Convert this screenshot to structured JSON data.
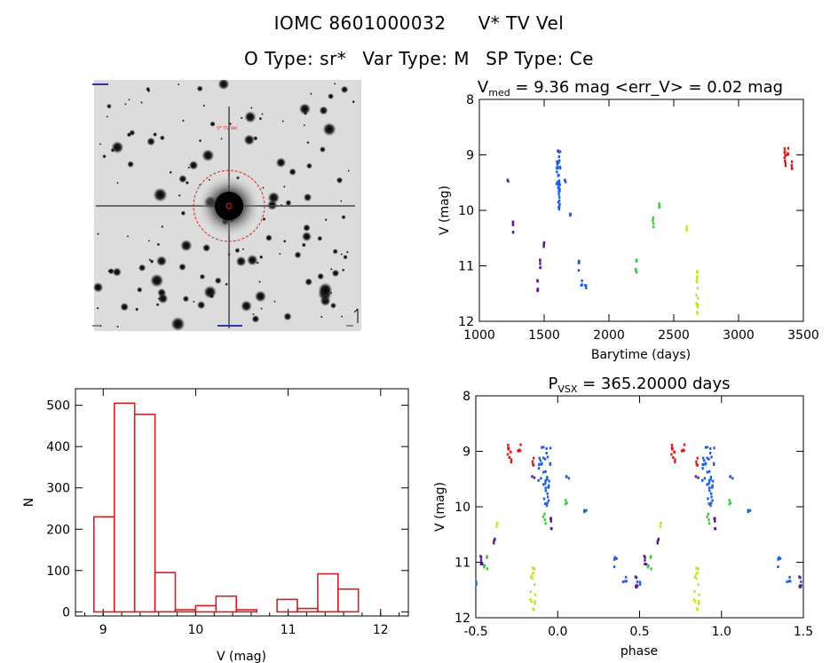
{
  "header": {
    "title_id": "IOMC 8601000032",
    "title_name": "V* TV Vel",
    "otype": "O Type: sr*",
    "vartype": "Var Type: M",
    "sptype": "SP Type: Ce"
  },
  "image_panel": {
    "annotation": "V* TV Vel"
  },
  "colors": {
    "hist": "#cc2222",
    "time_palette": [
      "#5a1e8c",
      "#1f5fe0",
      "#27c7e0",
      "#3ec83e",
      "#c8e030",
      "#e0a020",
      "#d02020"
    ]
  },
  "chart_data": [
    {
      "type": "scatter",
      "id": "lightcurve",
      "title": {
        "v": "V",
        "sub": "med",
        "rest": " = 9.36 mag <err_V> = 0.02 mag"
      },
      "xlabel": "Barytime (days)",
      "ylabel": "V (mag)",
      "xlim": [
        1000,
        3500
      ],
      "ylim": [
        12,
        8
      ],
      "xticks": [
        1000,
        1500,
        2000,
        2500,
        3000,
        3500
      ],
      "yticks": [
        8,
        9,
        10,
        11,
        12
      ],
      "clusters": [
        {
          "x": 1220,
          "y": 9.45,
          "n": 2,
          "dx": 4,
          "dy": 0.04
        },
        {
          "x": 1260,
          "y": 10.3,
          "n": 6,
          "dx": 3,
          "dy": 0.18
        },
        {
          "x": 1450,
          "y": 11.4,
          "n": 6,
          "dx": 3,
          "dy": 0.18
        },
        {
          "x": 1470,
          "y": 11.0,
          "n": 5,
          "dx": 3,
          "dy": 0.12
        },
        {
          "x": 1500,
          "y": 10.6,
          "n": 4,
          "dx": 3,
          "dy": 0.08
        },
        {
          "x": 1610,
          "y": 9.45,
          "n": 40,
          "dx": 14,
          "dy": 0.55
        },
        {
          "x": 1660,
          "y": 9.45,
          "n": 3,
          "dx": 6,
          "dy": 0.04
        },
        {
          "x": 1700,
          "y": 10.05,
          "n": 3,
          "dx": 4,
          "dy": 0.06
        },
        {
          "x": 1770,
          "y": 11.0,
          "n": 5,
          "dx": 4,
          "dy": 0.12
        },
        {
          "x": 1790,
          "y": 11.3,
          "n": 4,
          "dx": 4,
          "dy": 0.08
        },
        {
          "x": 1820,
          "y": 11.4,
          "n": 3,
          "dx": 4,
          "dy": 0.05
        },
        {
          "x": 2210,
          "y": 11.05,
          "n": 5,
          "dx": 5,
          "dy": 0.16
        },
        {
          "x": 2340,
          "y": 10.2,
          "n": 4,
          "dx": 4,
          "dy": 0.1
        },
        {
          "x": 2390,
          "y": 9.9,
          "n": 3,
          "dx": 3,
          "dy": 0.06
        },
        {
          "x": 2600,
          "y": 10.3,
          "n": 3,
          "dx": 3,
          "dy": 0.06
        },
        {
          "x": 2680,
          "y": 11.55,
          "n": 16,
          "dx": 6,
          "dy": 0.45
        },
        {
          "x": 3360,
          "y": 9.05,
          "n": 10,
          "dx": 6,
          "dy": 0.2
        },
        {
          "x": 3380,
          "y": 8.9,
          "n": 5,
          "dx": 5,
          "dy": 0.1
        },
        {
          "x": 3410,
          "y": 9.2,
          "n": 4,
          "dx": 3,
          "dy": 0.12
        }
      ]
    },
    {
      "type": "bar",
      "id": "histogram",
      "xlabel": "V (mag)",
      "ylabel": "N",
      "xlim": [
        8.7,
        12.3
      ],
      "ylim": [
        -10,
        540
      ],
      "xticks": [
        9,
        10,
        11,
        12
      ],
      "yticks": [
        0,
        100,
        200,
        300,
        400,
        500
      ],
      "bin_start": 8.9,
      "bin_width": 0.22,
      "values": [
        230,
        505,
        478,
        95,
        5,
        15,
        38,
        5,
        0,
        30,
        8,
        92,
        55
      ]
    },
    {
      "type": "scatter",
      "id": "phased",
      "title": {
        "v": "P",
        "sub": "VSX",
        "rest": " = 365.20000 days"
      },
      "xlabel": "phase",
      "ylabel": "V (mag)",
      "xlim": [
        -0.5,
        1.5
      ],
      "ylim": [
        12,
        8
      ],
      "xticks": [
        -0.5,
        0.0,
        0.5,
        1.0,
        1.5
      ],
      "yticks": [
        8,
        9,
        10,
        11,
        12
      ],
      "period_days": 365.2,
      "epoch_days": 1640
    }
  ]
}
